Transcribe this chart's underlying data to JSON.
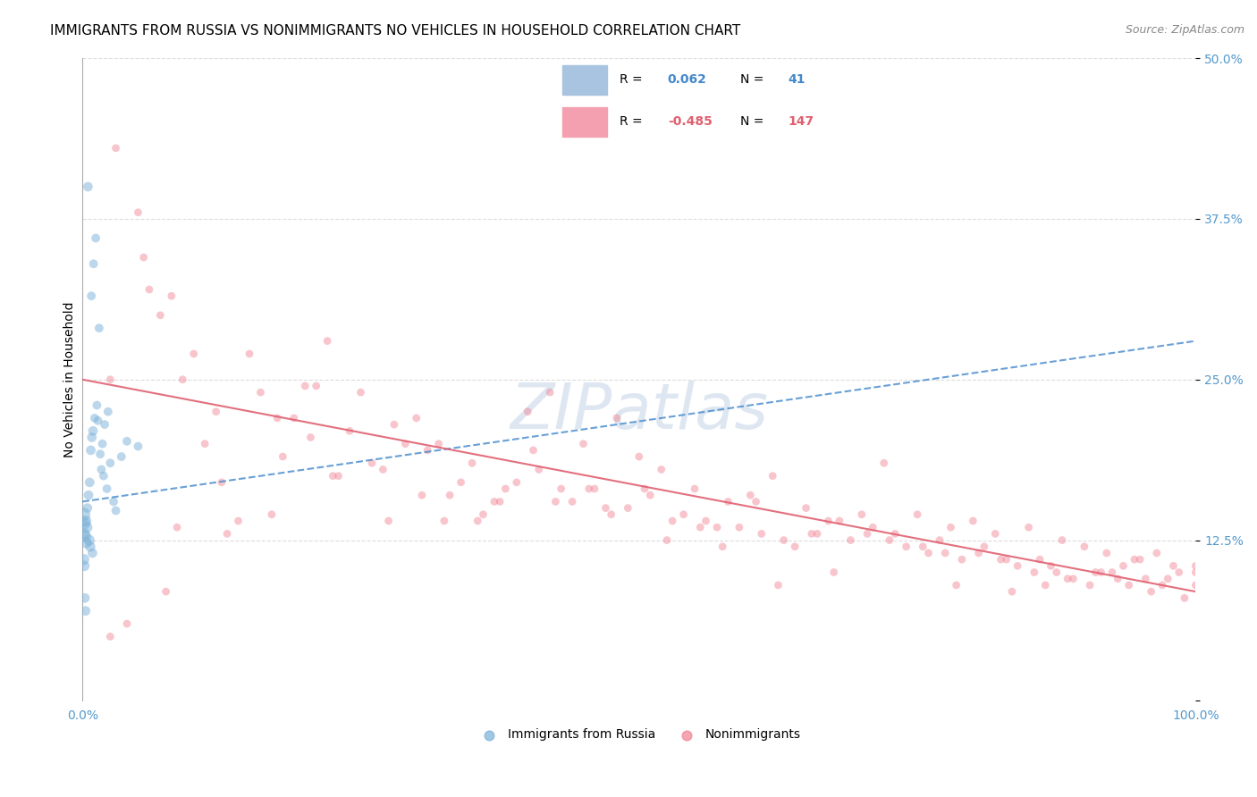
{
  "title": "IMMIGRANTS FROM RUSSIA VS NONIMMIGRANTS NO VEHICLES IN HOUSEHOLD CORRELATION CHART",
  "source": "Source: ZipAtlas.com",
  "ylabel": "No Vehicles in Household",
  "xlabel_ticks": [
    "0.0%",
    "100.0%"
  ],
  "ylabel_ticks": [
    "12.5%",
    "25.0%",
    "37.5%",
    "50.0%"
  ],
  "watermark": "ZIPatlas",
  "legend_entries": [
    {
      "label": "Immigrants from Russia",
      "R": 0.062,
      "N": 41,
      "color": "#a8c4e0"
    },
    {
      "label": "Nonimmigrants",
      "R": -0.485,
      "N": 147,
      "color": "#f4a0b0"
    }
  ],
  "blue_scatter_x": [
    0.5,
    1.2,
    1.0,
    0.8,
    1.5,
    0.3,
    0.4,
    0.2,
    0.6,
    0.7,
    0.9,
    1.1,
    2.0,
    1.8,
    3.5,
    2.5,
    0.1,
    0.15,
    0.25,
    0.35,
    0.45,
    0.55,
    0.65,
    0.75,
    0.85,
    0.95,
    1.3,
    1.4,
    1.6,
    1.7,
    1.9,
    2.2,
    2.8,
    3.0,
    4.0,
    5.0,
    2.3,
    0.12,
    0.18,
    0.22,
    0.28
  ],
  "blue_scatter_y": [
    40.0,
    36.0,
    34.0,
    31.5,
    29.0,
    14.0,
    13.5,
    13.0,
    12.5,
    12.0,
    11.5,
    22.0,
    21.5,
    20.0,
    19.0,
    18.5,
    14.5,
    13.8,
    12.8,
    12.3,
    15.0,
    16.0,
    17.0,
    19.5,
    20.5,
    21.0,
    23.0,
    21.8,
    19.2,
    18.0,
    17.5,
    16.5,
    15.5,
    14.8,
    20.2,
    19.8,
    22.5,
    11.0,
    10.5,
    8.0,
    7.0
  ],
  "blue_scatter_sizes": [
    60,
    50,
    50,
    50,
    50,
    80,
    80,
    70,
    80,
    70,
    60,
    50,
    50,
    50,
    50,
    50,
    120,
    100,
    90,
    80,
    60,
    60,
    60,
    60,
    60,
    60,
    50,
    50,
    50,
    50,
    50,
    50,
    50,
    50,
    50,
    50,
    50,
    80,
    70,
    60,
    60
  ],
  "pink_scatter_x": [
    3.0,
    5.0,
    5.5,
    7.0,
    8.0,
    10.0,
    12.0,
    15.0,
    20.0,
    22.0,
    25.0,
    28.0,
    30.0,
    32.0,
    35.0,
    38.0,
    40.0,
    42.0,
    45.0,
    48.0,
    50.0,
    52.0,
    55.0,
    58.0,
    60.0,
    62.0,
    65.0,
    68.0,
    70.0,
    72.0,
    75.0,
    78.0,
    80.0,
    82.0,
    85.0,
    88.0,
    90.0,
    92.0,
    95.0,
    98.0,
    100.0,
    18.0,
    20.5,
    23.0,
    27.0,
    33.0,
    36.0,
    43.0,
    47.0,
    53.0,
    57.0,
    63.0,
    67.0,
    73.0,
    77.0,
    83.0,
    87.0,
    93.0,
    97.0,
    6.0,
    9.0,
    11.0,
    16.0,
    19.0,
    24.0,
    29.0,
    31.0,
    34.0,
    37.0,
    39.0,
    41.0,
    44.0,
    46.0,
    49.0,
    51.0,
    54.0,
    56.0,
    59.0,
    61.0,
    64.0,
    66.0,
    69.0,
    71.0,
    74.0,
    76.0,
    79.0,
    81.0,
    84.0,
    86.0,
    89.0,
    91.0,
    94.0,
    96.0,
    99.0,
    4.0,
    26.0,
    21.0,
    13.0,
    14.0,
    17.0,
    2.5,
    8.5,
    30.5,
    35.5,
    40.5,
    45.5,
    50.5,
    55.5,
    60.5,
    65.5,
    70.5,
    75.5,
    80.5,
    85.5,
    90.5,
    95.5,
    100.0,
    67.5,
    72.5,
    77.5,
    82.5,
    87.5,
    92.5,
    97.5,
    62.5,
    57.5,
    52.5,
    47.5,
    42.5,
    37.5,
    32.5,
    27.5,
    22.5,
    17.5,
    12.5,
    7.5,
    2.5,
    100.0,
    98.5,
    96.5,
    94.5,
    93.5,
    91.5,
    88.5,
    86.5,
    83.5,
    78.5
  ],
  "pink_scatter_y": [
    43.0,
    38.0,
    34.5,
    30.0,
    31.5,
    27.0,
    22.5,
    27.0,
    24.5,
    28.0,
    24.0,
    21.5,
    22.0,
    20.0,
    18.5,
    16.5,
    22.5,
    24.0,
    20.0,
    22.0,
    19.0,
    18.0,
    16.5,
    15.5,
    16.0,
    17.5,
    15.0,
    14.0,
    14.5,
    18.5,
    14.5,
    13.5,
    14.0,
    13.0,
    13.5,
    12.5,
    12.0,
    11.5,
    11.0,
    10.5,
    10.5,
    19.0,
    20.5,
    17.5,
    18.0,
    16.0,
    14.5,
    16.5,
    15.0,
    14.0,
    13.5,
    12.5,
    14.0,
    13.0,
    12.5,
    11.0,
    10.5,
    9.5,
    9.0,
    32.0,
    25.0,
    20.0,
    24.0,
    22.0,
    21.0,
    20.0,
    19.5,
    17.0,
    15.5,
    17.0,
    18.0,
    15.5,
    16.5,
    15.0,
    16.0,
    14.5,
    14.0,
    13.5,
    13.0,
    12.0,
    13.0,
    12.5,
    13.5,
    12.0,
    11.5,
    11.0,
    12.0,
    10.5,
    11.0,
    9.5,
    10.0,
    9.0,
    8.5,
    8.0,
    6.0,
    18.5,
    24.5,
    13.0,
    14.0,
    14.5,
    25.0,
    13.5,
    16.0,
    14.0,
    19.5,
    16.5,
    16.5,
    13.5,
    15.5,
    13.0,
    13.0,
    12.0,
    11.5,
    10.0,
    9.0,
    9.5,
    10.0,
    10.0,
    12.5,
    11.5,
    11.0,
    10.0,
    10.0,
    9.5,
    9.0,
    12.0,
    12.5,
    14.5,
    15.5,
    15.5,
    14.0,
    14.0,
    17.5,
    22.0,
    17.0,
    8.5,
    5.0,
    9.0,
    10.0,
    11.5,
    11.0,
    10.5,
    10.0,
    9.5,
    9.0,
    8.5,
    9.0
  ],
  "blue_line": {
    "x0": 0,
    "x1": 100,
    "y0": 15.5,
    "y1": 28.0
  },
  "pink_line": {
    "x0": 0,
    "x1": 100,
    "y0": 25.0,
    "y1": 8.5
  },
  "xlim": [
    0,
    100
  ],
  "ylim": [
    0,
    50
  ],
  "yticks": [
    0,
    12.5,
    25.0,
    37.5,
    50.0
  ],
  "xticks": [
    0,
    100
  ],
  "grid_color": "#dddddd",
  "blue_color": "#7ab0d8",
  "pink_color": "#f08090",
  "blue_line_color": "#4488cc",
  "pink_line_color": "#e06070",
  "blue_dot_alpha": 0.5,
  "pink_dot_alpha": 0.45,
  "background_color": "#ffffff",
  "title_fontsize": 11,
  "watermark_color": "#c8d8e8",
  "watermark_fontsize": 52
}
